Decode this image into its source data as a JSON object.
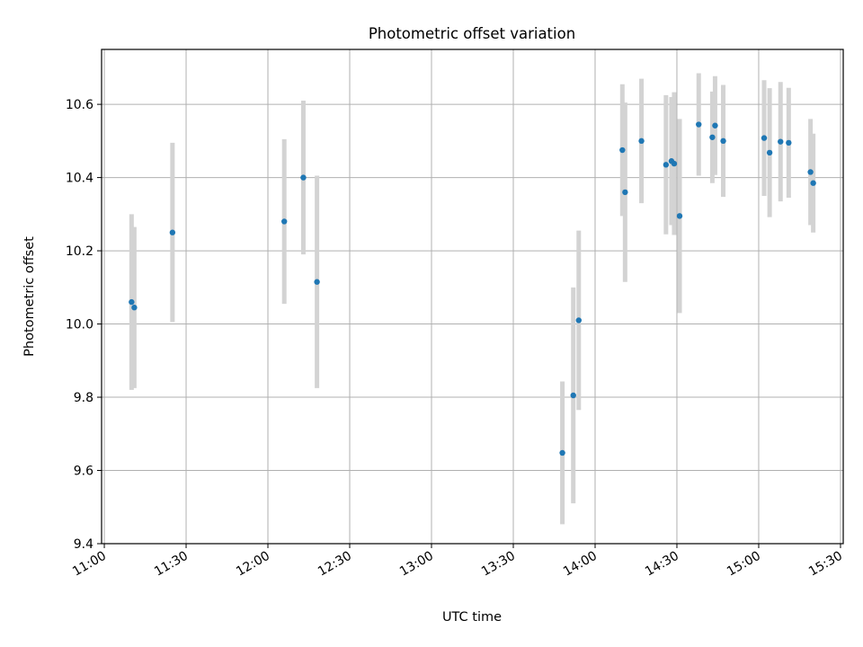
{
  "chart_data": {
    "type": "scatter",
    "title": "Photometric offset variation",
    "xlabel": "UTC time",
    "ylabel": "Photometric offset",
    "x_axis_type": "time",
    "xlim": [
      "10:59",
      "15:31"
    ],
    "ylim": [
      9.4,
      10.75
    ],
    "x_ticks": [
      "11:00",
      "11:30",
      "12:00",
      "12:30",
      "13:00",
      "13:30",
      "14:00",
      "14:30",
      "15:00",
      "15:30"
    ],
    "y_ticks": [
      9.4,
      9.6,
      9.8,
      10.0,
      10.2,
      10.4,
      10.6
    ],
    "grid": true,
    "legend": "none",
    "colors": {
      "point": "#1f77b4",
      "errorbar": "#d3d3d3",
      "grid": "#b0b0b0"
    },
    "series": [
      {
        "points": [
          {
            "x": "11:10",
            "y": 10.06,
            "yerr": 0.24
          },
          {
            "x": "11:11",
            "y": 10.045,
            "yerr": 0.22
          },
          {
            "x": "11:25",
            "y": 10.25,
            "yerr": 0.245
          },
          {
            "x": "12:06",
            "y": 10.28,
            "yerr": 0.225
          },
          {
            "x": "12:13",
            "y": 10.4,
            "yerr": 0.21
          },
          {
            "x": "12:18",
            "y": 10.115,
            "yerr": 0.29
          },
          {
            "x": "13:48",
            "y": 9.648,
            "yerr": 0.195
          },
          {
            "x": "13:52",
            "y": 9.805,
            "yerr": 0.295
          },
          {
            "x": "13:54",
            "y": 10.01,
            "yerr": 0.245
          },
          {
            "x": "14:10",
            "y": 10.475,
            "yerr": 0.18
          },
          {
            "x": "14:11",
            "y": 10.36,
            "yerr": 0.245
          },
          {
            "x": "14:17",
            "y": 10.5,
            "yerr": 0.17
          },
          {
            "x": "14:26",
            "y": 10.435,
            "yerr": 0.19
          },
          {
            "x": "14:28",
            "y": 10.445,
            "yerr": 0.175
          },
          {
            "x": "14:29",
            "y": 10.438,
            "yerr": 0.195
          },
          {
            "x": "14:31",
            "y": 10.295,
            "yerr": 0.265
          },
          {
            "x": "14:38",
            "y": 10.545,
            "yerr": 0.14
          },
          {
            "x": "14:43",
            "y": 10.51,
            "yerr": 0.125
          },
          {
            "x": "14:44",
            "y": 10.542,
            "yerr": 0.135
          },
          {
            "x": "14:47",
            "y": 10.5,
            "yerr": 0.153
          },
          {
            "x": "15:02",
            "y": 10.508,
            "yerr": 0.158
          },
          {
            "x": "15:04",
            "y": 10.468,
            "yerr": 0.176
          },
          {
            "x": "15:08",
            "y": 10.498,
            "yerr": 0.163
          },
          {
            "x": "15:11",
            "y": 10.495,
            "yerr": 0.15
          },
          {
            "x": "15:19",
            "y": 10.415,
            "yerr": 0.145
          },
          {
            "x": "15:20",
            "y": 10.385,
            "yerr": 0.135
          }
        ]
      }
    ]
  }
}
